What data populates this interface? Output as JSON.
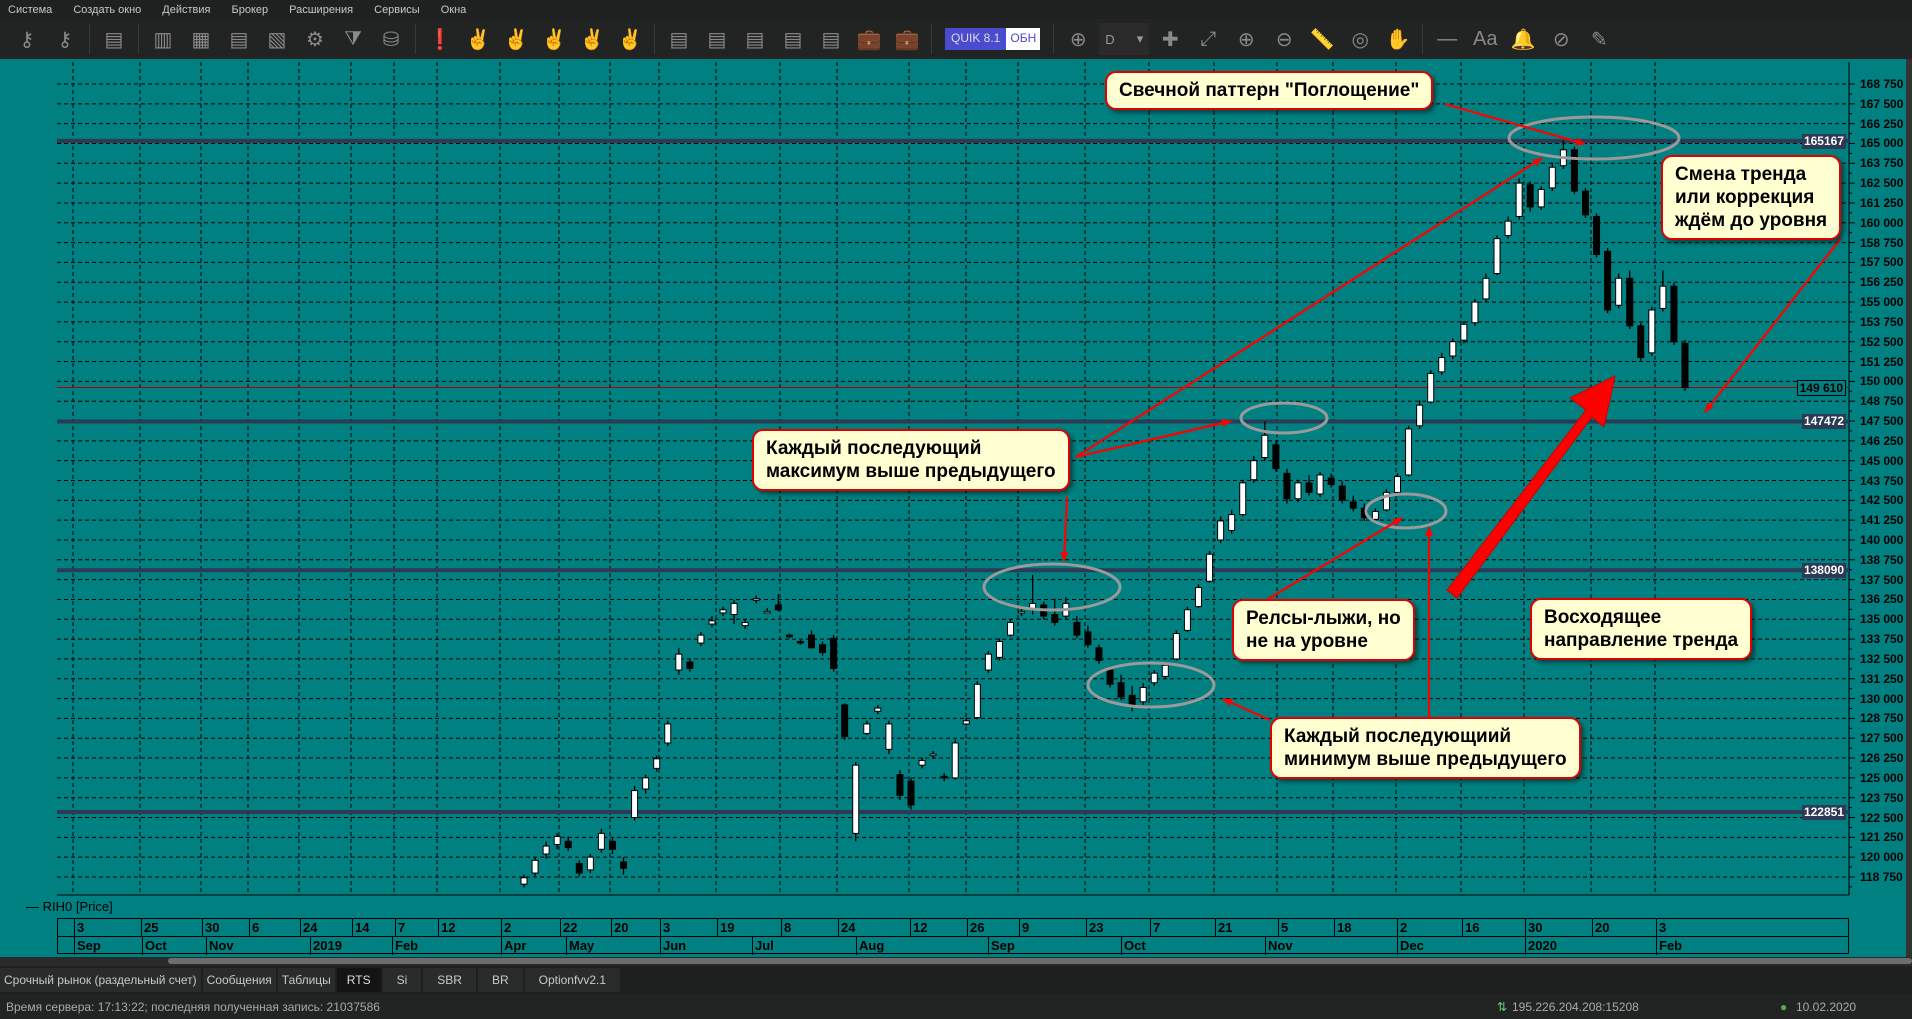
{
  "menu": [
    "Система",
    "Создать окно",
    "Действия",
    "Брокер",
    "Расширения",
    "Сервисы",
    "Окна"
  ],
  "toolbar": {
    "icons1": [
      "key-icon",
      "key-delete-icon",
      "new-window-icon",
      "chart-window-icon",
      "scatter-window-icon",
      "table-window-icon",
      "handshake-window-icon",
      "settings-window-icon",
      "filter-icon",
      "database-icon",
      "alert-icon",
      "hand-t-icon",
      "hand-icon",
      "hand-x-icon",
      "hands-icon",
      "hand-dollar-icon",
      "order-window-icon",
      "order-hand-icon",
      "order-dollar-icon",
      "order-dollar2-icon",
      "order-doc-icon",
      "portfolio-icon",
      "portfolio-dollar-icon"
    ],
    "quik_label": "QUIK 8.1",
    "quik_update": "ОБН",
    "period": "D",
    "icons2": [
      "add-indicator-icon",
      "crosshair-icon",
      "fit-screen-icon",
      "zoom-in-icon",
      "zoom-out-icon",
      "ruler-icon",
      "target-icon",
      "hand-pan-icon",
      "line-tool-icon",
      "text-tool-icon",
      "alert-bell-icon",
      "hide-icon",
      "pencils-icon"
    ]
  },
  "chart": {
    "legend": "RIH0 [Price]",
    "background": "#008080",
    "y_ticks": [
      "168 750",
      "167 500",
      "166 250",
      "165 000",
      "163 750",
      "162 500",
      "161 250",
      "160 000",
      "158 750",
      "157 500",
      "156 250",
      "155 000",
      "153 750",
      "152 500",
      "151 250",
      "150 000",
      "148 750",
      "147 500",
      "146 250",
      "145 000",
      "143 750",
      "142 500",
      "141 250",
      "140 000",
      "138 750",
      "137 500",
      "136 250",
      "135 000",
      "133 750",
      "132 500",
      "131 250",
      "130 000",
      "128 750",
      "127 500",
      "126 250",
      "125 000",
      "123 750",
      "122 500",
      "121 250",
      "120 000",
      "118 750"
    ],
    "current_price": "149 610",
    "levels": [
      {
        "value": 165167,
        "label": "165167"
      },
      {
        "value": 147472,
        "label": "147472"
      },
      {
        "value": 138090,
        "label": "138090"
      },
      {
        "value": 122851,
        "label": "122851"
      }
    ],
    "x_days": [
      "3",
      "25",
      "30",
      "6",
      "24",
      "14",
      "7",
      "12",
      "2",
      "22",
      "20",
      "3",
      "19",
      "8",
      "24",
      "12",
      "26",
      "9",
      "23",
      "7",
      "21",
      "5",
      "18",
      "2",
      "16",
      "30",
      "20",
      "3"
    ],
    "x_months": [
      "Sep",
      "Oct",
      "Nov",
      "2019",
      "Feb",
      "Apr",
      "May",
      "Jun",
      "Jul",
      "Aug",
      "Sep",
      "Oct",
      "Nov",
      "Dec",
      "2020",
      "Feb"
    ]
  },
  "chart_data": {
    "type": "candlestick",
    "ylim": [
      118750,
      168750
    ],
    "ohlc": [
      [
        118300,
        118900,
        118100,
        118700
      ],
      [
        119000,
        120000,
        118800,
        119800
      ],
      [
        120200,
        121000,
        119900,
        120700
      ],
      [
        120800,
        121500,
        120500,
        121300
      ],
      [
        121000,
        121300,
        120400,
        120600
      ],
      [
        119600,
        119800,
        118800,
        119000
      ],
      [
        119200,
        120200,
        119000,
        120000
      ],
      [
        120500,
        121800,
        120300,
        121500
      ],
      [
        121000,
        121200,
        120200,
        120500
      ],
      [
        119700,
        120000,
        118900,
        119300
      ],
      [
        122500,
        124500,
        122300,
        124200
      ],
      [
        124300,
        125200,
        124000,
        125000
      ],
      [
        125600,
        126400,
        125400,
        126200
      ],
      [
        127200,
        128600,
        127000,
        128400
      ],
      [
        131800,
        133200,
        131500,
        132800
      ],
      [
        132300,
        132500,
        131700,
        131900
      ],
      [
        133500,
        134200,
        133300,
        134000
      ],
      [
        134700,
        135200,
        134500,
        134900
      ],
      [
        135400,
        135800,
        135200,
        135600
      ],
      [
        135300,
        136200,
        134700,
        136000
      ],
      [
        134600,
        135000,
        134400,
        134800
      ],
      [
        136200,
        136500,
        136000,
        136300
      ],
      [
        135500,
        135700,
        135400,
        135500
      ],
      [
        135900,
        136600,
        135500,
        135600
      ],
      [
        134000,
        134100,
        133800,
        133900
      ],
      [
        133600,
        133700,
        133400,
        133500
      ],
      [
        134000,
        134300,
        133200,
        133200
      ],
      [
        133400,
        133600,
        132700,
        132900
      ],
      [
        133800,
        134000,
        131700,
        131900
      ],
      [
        129600,
        129700,
        127400,
        127600
      ],
      [
        121500,
        126000,
        121000,
        125800
      ],
      [
        127800,
        128600,
        127700,
        128400
      ],
      [
        129200,
        129600,
        129000,
        129400
      ],
      [
        126800,
        128600,
        126500,
        128400
      ],
      [
        125200,
        125500,
        123600,
        123900
      ],
      [
        124800,
        125000,
        123000,
        123300
      ],
      [
        125800,
        126300,
        125600,
        126100
      ],
      [
        126400,
        126700,
        126200,
        126500
      ],
      [
        125100,
        125300,
        124800,
        125000
      ],
      [
        125000,
        127400,
        124900,
        127200
      ],
      [
        128400,
        128800,
        128300,
        128600
      ],
      [
        128800,
        131100,
        128700,
        130900
      ],
      [
        131800,
        133000,
        131600,
        132800
      ],
      [
        132600,
        133800,
        132400,
        133600
      ],
      [
        134000,
        135000,
        133900,
        134800
      ],
      [
        135400,
        135700,
        135200,
        135500
      ],
      [
        135600,
        137800,
        135300,
        136000
      ],
      [
        135900,
        136100,
        135000,
        135200
      ],
      [
        135300,
        136300,
        134600,
        134800
      ],
      [
        135200,
        136400,
        135000,
        136000
      ],
      [
        134800,
        135200,
        133800,
        134000
      ],
      [
        134200,
        134600,
        133200,
        133400
      ],
      [
        133200,
        133400,
        132200,
        132400
      ],
      [
        131800,
        132000,
        130700,
        130900
      ],
      [
        131000,
        131500,
        129900,
        130100
      ],
      [
        130200,
        130800,
        129200,
        129600
      ],
      [
        129800,
        131000,
        129600,
        130700
      ],
      [
        131000,
        131800,
        130800,
        131600
      ],
      [
        131400,
        132300,
        131200,
        132100
      ],
      [
        132500,
        134300,
        132400,
        134100
      ],
      [
        134300,
        135800,
        134200,
        135600
      ],
      [
        135800,
        137200,
        135700,
        137000
      ],
      [
        137400,
        139300,
        137300,
        139100
      ],
      [
        140000,
        141500,
        139800,
        141200
      ],
      [
        140600,
        141900,
        140400,
        141600
      ],
      [
        141600,
        143800,
        141500,
        143600
      ],
      [
        143800,
        145300,
        143600,
        145000
      ],
      [
        145200,
        147472,
        145000,
        146600
      ],
      [
        146000,
        146200,
        144300,
        144500
      ],
      [
        144200,
        144500,
        142300,
        142600
      ],
      [
        142600,
        143800,
        142400,
        143600
      ],
      [
        143600,
        144100,
        142800,
        143000
      ],
      [
        142900,
        144300,
        142700,
        144100
      ],
      [
        143900,
        144200,
        143300,
        143500
      ],
      [
        143400,
        143700,
        142300,
        142500
      ],
      [
        142400,
        142800,
        141800,
        142000
      ],
      [
        142000,
        142300,
        141200,
        141400
      ],
      [
        141300,
        142000,
        141100,
        141800
      ],
      [
        141900,
        143200,
        141800,
        143000
      ],
      [
        143000,
        144200,
        142900,
        144000
      ],
      [
        144100,
        147200,
        144000,
        147000
      ],
      [
        147200,
        148800,
        147000,
        148500
      ],
      [
        148700,
        150700,
        148600,
        150500
      ],
      [
        150600,
        151800,
        150400,
        151500
      ],
      [
        151600,
        152700,
        151400,
        152500
      ],
      [
        152600,
        153800,
        152400,
        153600
      ],
      [
        153700,
        155200,
        153500,
        155000
      ],
      [
        155200,
        156800,
        155000,
        156500
      ],
      [
        156800,
        159200,
        156700,
        159000
      ],
      [
        159200,
        160400,
        159000,
        160100
      ],
      [
        160400,
        162800,
        160200,
        162500
      ],
      [
        162400,
        162600,
        160700,
        161000
      ],
      [
        161000,
        162300,
        160800,
        162100
      ],
      [
        162200,
        163800,
        162000,
        163500
      ],
      [
        163600,
        165167,
        163400,
        164600
      ],
      [
        164600,
        164800,
        161800,
        162000
      ],
      [
        162000,
        162200,
        160300,
        160500
      ],
      [
        160400,
        160600,
        157800,
        158000
      ],
      [
        158200,
        158400,
        154300,
        154500
      ],
      [
        154800,
        156800,
        154600,
        156500
      ],
      [
        156500,
        157000,
        153300,
        153500
      ],
      [
        153500,
        153700,
        151300,
        151500
      ],
      [
        151800,
        154700,
        151600,
        154500
      ],
      [
        154600,
        157000,
        154400,
        156000
      ],
      [
        156000,
        156200,
        152300,
        152500
      ],
      [
        152400,
        152600,
        149400,
        149610
      ]
    ],
    "horizontal_levels": [
      165167,
      149610,
      147472,
      138090,
      122851
    ],
    "grid": true,
    "up_color": "#ffffff",
    "down_color": "#000000",
    "level_color": "#2c3a55",
    "annotation_color": "#ff0000"
  },
  "annotations": {
    "engulfing": "Свечной паттерн \"Поглощение\"",
    "trend_change": [
      "Смена тренда",
      "или коррекция",
      "ждём до уровня"
    ],
    "higher_highs": [
      "Каждый последующий",
      "максимум выше предыдущего"
    ],
    "rails": [
      "Релсы-лыжи, но",
      "не на уровне"
    ],
    "uptrend": [
      "Восходящее",
      "направление тренда"
    ],
    "higher_lows": [
      "Каждый последующиий",
      "минимум выше предыдущего"
    ]
  },
  "tabs": [
    "Срочный рынок (раздельный счет)",
    "Сообщения",
    "Таблицы",
    "RTS",
    "Si",
    "SBR",
    "BR",
    "Optionfvv2.1"
  ],
  "active_tab": "RTS",
  "status": {
    "server": "Время сервера: 17:13:22; последняя полученная запись: 21037586",
    "connection": "195.226.204.208:15208",
    "date": "10.02.2020"
  }
}
